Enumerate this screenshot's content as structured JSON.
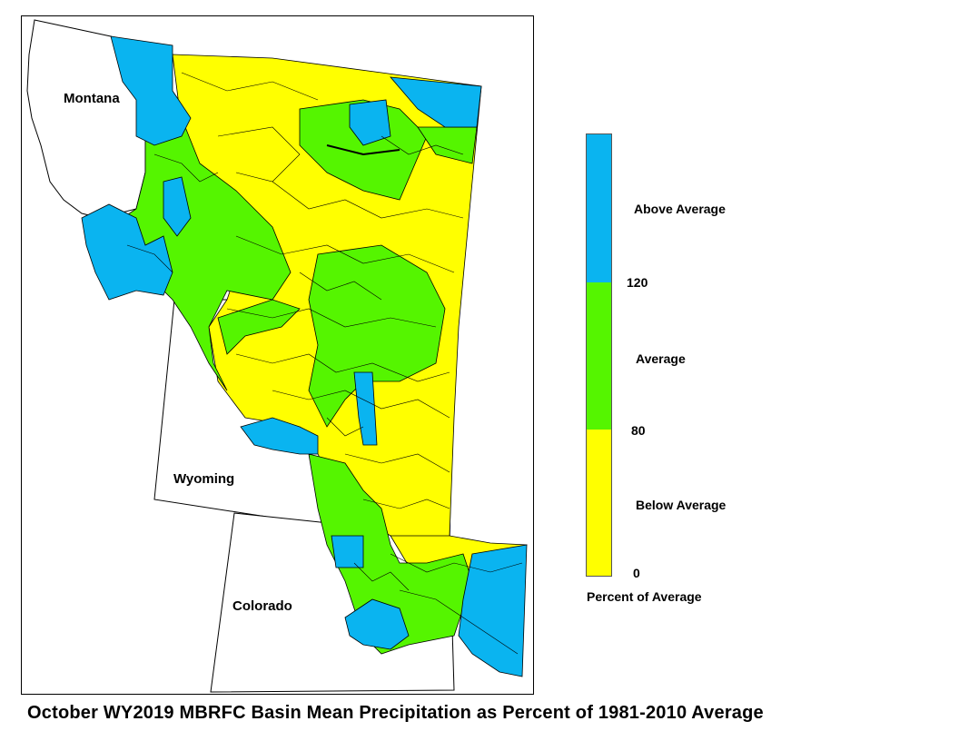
{
  "map": {
    "states": {
      "montana": "Montana",
      "wyoming": "Wyoming",
      "colorado": "Colorado"
    },
    "colors": {
      "above": "#0ab4f0",
      "average": "#55f500",
      "below": "#ffff00",
      "outline": "#000000"
    }
  },
  "legend": {
    "above_label": "Above Average",
    "average_label": "Average",
    "below_label": "Below Average",
    "tick_high": "120",
    "tick_low": "80",
    "tick_zero": "0",
    "axis_title": "Percent of Average",
    "thresholds": [
      0,
      80,
      120
    ]
  },
  "caption": "October WY2019 MBRFC Basin Mean Precipitation as Percent of 1981-2010 Average"
}
